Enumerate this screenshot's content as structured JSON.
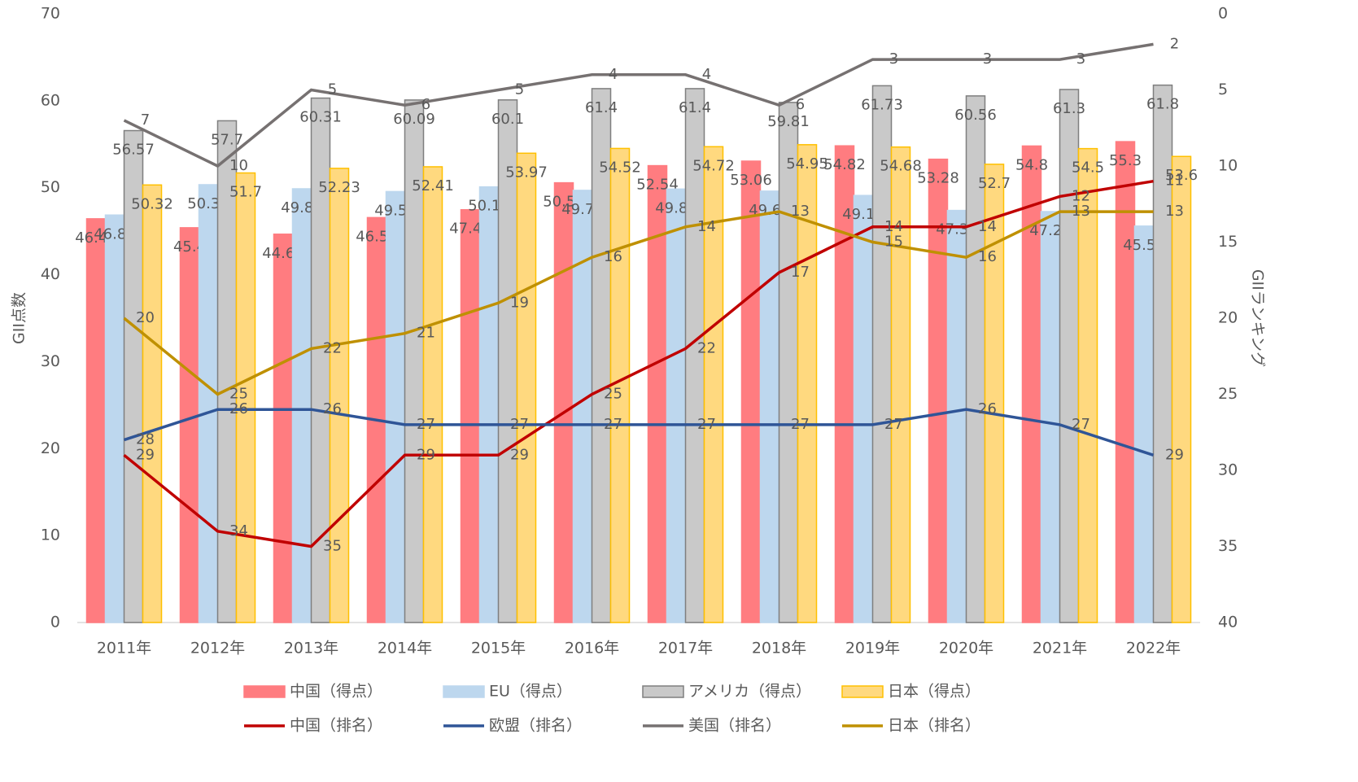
{
  "chart_data": {
    "type": "bar",
    "categories": [
      "2011年",
      "2012年",
      "2013年",
      "2014年",
      "2015年",
      "2016年",
      "2017年",
      "2018年",
      "2019年",
      "2020年",
      "2021年",
      "2022年"
    ],
    "ylabel": "GII点数",
    "y2label": "GIIランキング",
    "ylim": [
      0,
      70
    ],
    "yticks": [
      0,
      10,
      20,
      30,
      40,
      50,
      60,
      70
    ],
    "y2lim": [
      0,
      40
    ],
    "y2ticks": [
      0,
      5,
      10,
      15,
      20,
      25,
      30,
      35,
      40
    ],
    "y2_inverted": true,
    "series": [
      {
        "name": "中国（得点）",
        "type": "bar",
        "color": "#ff7c80",
        "border": "#ff7c80",
        "values": [
          46.43,
          45.4,
          44.66,
          46.57,
          47.47,
          50.57,
          52.54,
          53.06,
          54.82,
          53.28,
          54.8,
          55.3
        ]
      },
      {
        "name": "EU（得点）",
        "type": "bar",
        "color": "#bdd7ee",
        "border": "#bdd7ee",
        "values": [
          46.86,
          50.35,
          49.88,
          49.56,
          50.1,
          49.7,
          49.85,
          49.61,
          49.11,
          47.39,
          47.26,
          45.59
        ],
        "value_labels": [
          "46.86",
          "50.35",
          "49.88",
          "49.56",
          "50.10",
          "49.70",
          "49.85",
          "49.61",
          "49.11",
          "47.39",
          "47.26",
          "45.59"
        ]
      },
      {
        "name": "アメリカ（得点）",
        "type": "bar",
        "color": "#c9c9c9",
        "border": "#7f7f7f",
        "values": [
          56.57,
          57.7,
          60.31,
          60.09,
          60.1,
          61.4,
          61.4,
          59.81,
          61.73,
          60.56,
          61.3,
          61.8
        ]
      },
      {
        "name": "日本（得点）",
        "type": "bar",
        "color": "#ffd97f",
        "border": "#ffc000",
        "values": [
          50.32,
          51.7,
          52.23,
          52.41,
          53.97,
          54.52,
          54.72,
          54.95,
          54.68,
          52.7,
          54.5,
          53.6
        ]
      },
      {
        "name": "中国（排名）",
        "type": "line",
        "axis": "y2",
        "color": "#c00000",
        "values": [
          29,
          34,
          35,
          29,
          29,
          25,
          22,
          17,
          14,
          14,
          12,
          11
        ]
      },
      {
        "name": "欧盟（排名）",
        "type": "line",
        "axis": "y2",
        "color": "#2f5597",
        "values": [
          28,
          26,
          26,
          27,
          27,
          27,
          27,
          27,
          27,
          26,
          27,
          29
        ]
      },
      {
        "name": "美国（排名）",
        "type": "line",
        "axis": "y2",
        "color": "#767171",
        "values": [
          7,
          10,
          5,
          6,
          5,
          4,
          4,
          6,
          3,
          3,
          3,
          2
        ]
      },
      {
        "name": "日本（排名）",
        "type": "line",
        "axis": "y2",
        "color": "#bf9000",
        "values": [
          20,
          25,
          22,
          21,
          19,
          16,
          14,
          13,
          15,
          16,
          13,
          13
        ]
      }
    ]
  }
}
